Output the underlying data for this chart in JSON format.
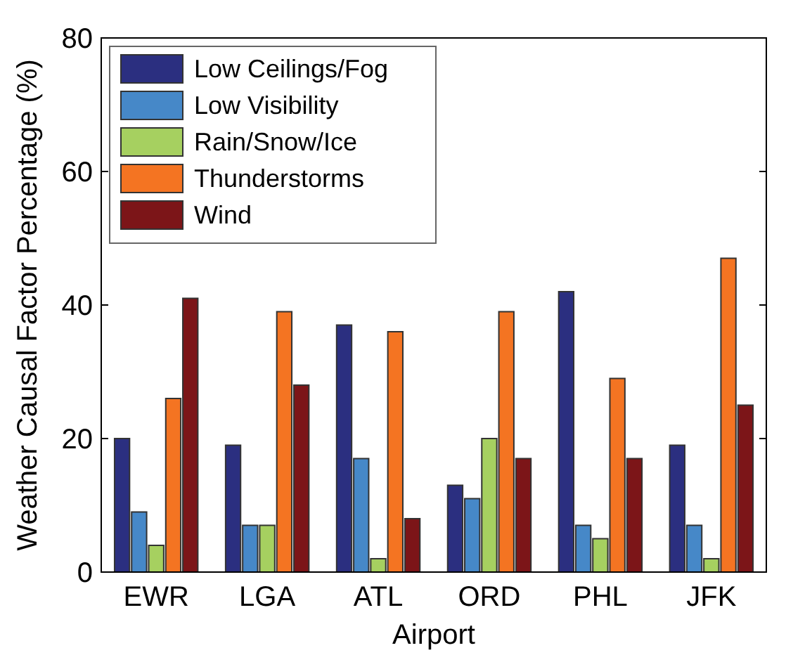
{
  "chart_data": {
    "type": "bar",
    "xlabel": "Airport",
    "ylabel": "Weather Causal Factor Percentage (%)",
    "categories": [
      "EWR",
      "LGA",
      "ATL",
      "ORD",
      "PHL",
      "JFK"
    ],
    "series": [
      {
        "name": "Low Ceilings/Fog",
        "color": "#2b2f80",
        "values": [
          20,
          19,
          37,
          13,
          42,
          19
        ]
      },
      {
        "name": "Low Visibility",
        "color": "#4688c8",
        "values": [
          9,
          7,
          17,
          11,
          7,
          7
        ]
      },
      {
        "name": "Rain/Snow/Ice",
        "color": "#a6d060",
        "values": [
          4,
          7,
          2,
          20,
          5,
          2
        ]
      },
      {
        "name": "Thunderstorms",
        "color": "#f47422",
        "values": [
          26,
          39,
          36,
          39,
          29,
          47
        ]
      },
      {
        "name": "Wind",
        "color": "#7c1518",
        "values": [
          41,
          28,
          8,
          17,
          17,
          25
        ]
      }
    ],
    "ylim": [
      0,
      80
    ],
    "yticks": [
      0,
      20,
      40,
      60,
      80
    ],
    "legend": "top left"
  }
}
